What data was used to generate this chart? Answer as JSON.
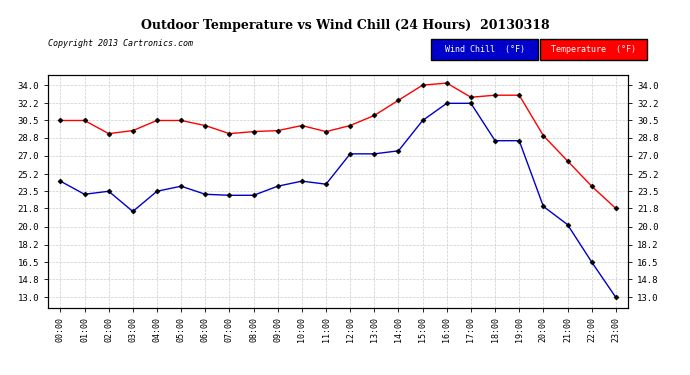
{
  "title": "Outdoor Temperature vs Wind Chill (24 Hours)  20130318",
  "copyright_text": "Copyright 2013 Cartronics.com",
  "x_labels": [
    "00:00",
    "01:00",
    "02:00",
    "03:00",
    "04:00",
    "05:00",
    "06:00",
    "07:00",
    "08:00",
    "09:00",
    "10:00",
    "11:00",
    "12:00",
    "13:00",
    "14:00",
    "15:00",
    "16:00",
    "17:00",
    "18:00",
    "19:00",
    "20:00",
    "21:00",
    "22:00",
    "23:00"
  ],
  "temperature": [
    30.5,
    30.5,
    29.2,
    29.5,
    30.5,
    30.5,
    30.0,
    29.2,
    29.4,
    29.5,
    30.0,
    29.4,
    30.0,
    31.0,
    32.5,
    34.0,
    34.2,
    32.8,
    33.0,
    33.0,
    29.0,
    26.5,
    24.0,
    21.8
  ],
  "wind_chill": [
    24.5,
    23.2,
    23.5,
    21.5,
    23.5,
    24.0,
    23.2,
    23.1,
    23.1,
    24.0,
    24.5,
    24.2,
    27.2,
    27.2,
    27.5,
    30.5,
    32.2,
    32.2,
    28.5,
    28.5,
    22.0,
    20.2,
    16.5,
    13.0
  ],
  "temp_color": "#ff0000",
  "wind_chill_color": "#0000cc",
  "ylim_min": 12.0,
  "ylim_max": 35.0,
  "yticks": [
    13.0,
    14.8,
    16.5,
    18.2,
    20.0,
    21.8,
    23.5,
    25.2,
    27.0,
    28.8,
    30.5,
    32.2,
    34.0
  ],
  "bg_color": "#ffffff",
  "grid_color": "#cccccc",
  "marker": "D",
  "marker_size": 2.5,
  "linewidth": 1.0,
  "legend_wind_bg": "#0000cc",
  "legend_temp_bg": "#ff0000",
  "legend_wind_label": "Wind Chill  (°F)",
  "legend_temp_label": "Temperature  (°F)"
}
